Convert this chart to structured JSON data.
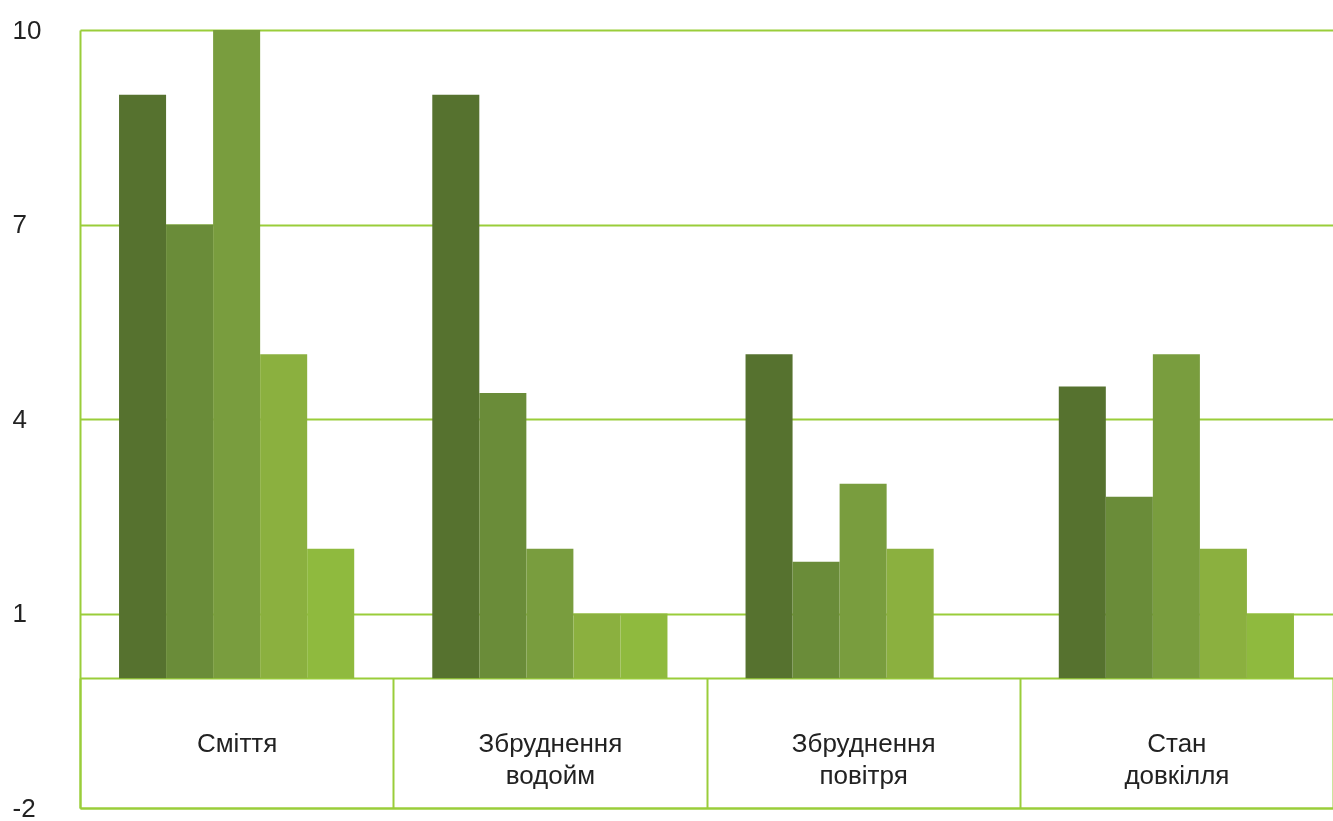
{
  "chart_data": {
    "type": "bar",
    "categories": [
      "Сміття",
      "Збруднення водойм",
      "Збруднення повітря",
      "Стан довкілля"
    ],
    "series": [
      {
        "color": "#56722f",
        "values": [
          9,
          9,
          5,
          4.5
        ]
      },
      {
        "color": "#6a8c39",
        "values": [
          7,
          4.4,
          1.8,
          2.8
        ]
      },
      {
        "color": "#799d3e",
        "values": [
          10,
          2,
          3,
          5
        ]
      },
      {
        "color": "#8bb03f",
        "values": [
          5,
          1,
          2,
          2
        ]
      },
      {
        "color": "#8fba3e",
        "values": [
          2,
          1,
          null,
          1
        ]
      }
    ],
    "ylim": [
      -2,
      10
    ],
    "yticks": [
      -2,
      {
        "value": 0,
        "label": null
      },
      1,
      4,
      7,
      10
    ],
    "grid": "y"
  }
}
